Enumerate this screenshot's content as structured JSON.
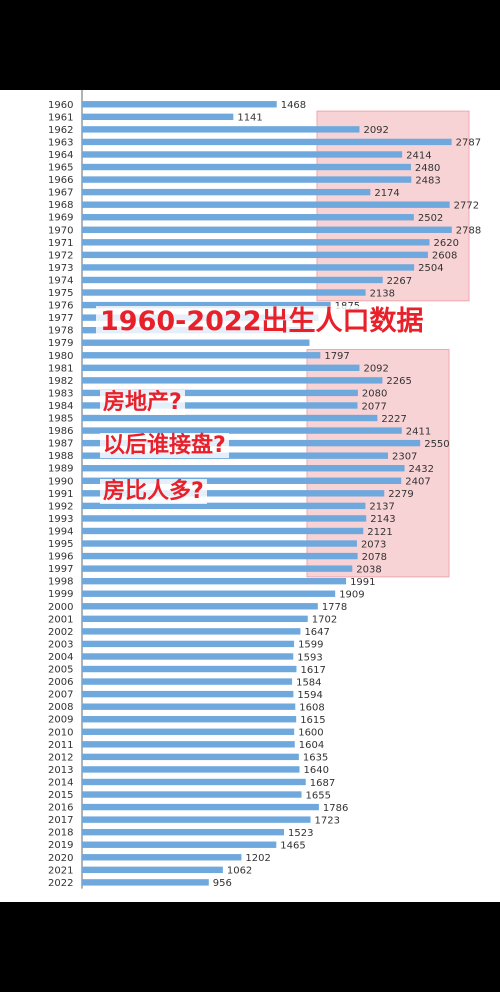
{
  "overlay": {
    "title": "1960-2022出生人口数据",
    "questions": [
      "房地产?",
      "以后谁接盘?",
      "房比人多?"
    ]
  },
  "colors": {
    "bar": "#6fa8dc",
    "highlight": "#f8d3d6",
    "highlight_border": "#f0a7ad",
    "overlay_text": "#e8202a"
  },
  "chart_data": {
    "type": "bar",
    "orientation": "horizontal",
    "categories": [
      "1960",
      "1961",
      "1962",
      "1963",
      "1964",
      "1965",
      "1966",
      "1967",
      "1968",
      "1969",
      "1970",
      "1971",
      "1972",
      "1973",
      "1974",
      "1975",
      "1976",
      "1977",
      "1978",
      "1979",
      "1980",
      "1981",
      "1982",
      "1983",
      "1984",
      "1985",
      "1986",
      "1987",
      "1988",
      "1989",
      "1990",
      "1991",
      "1992",
      "1993",
      "1994",
      "1995",
      "1996",
      "1997",
      "1998",
      "1999",
      "2000",
      "2001",
      "2002",
      "2003",
      "2004",
      "2005",
      "2006",
      "2007",
      "2008",
      "2009",
      "2010",
      "2011",
      "2012",
      "2013",
      "2014",
      "2015",
      "2016",
      "2017",
      "2018",
      "2019",
      "2020",
      "2021",
      "2022"
    ],
    "values": [
      1468,
      1141,
      2092,
      2787,
      2414,
      2480,
      2483,
      2174,
      2772,
      2502,
      2788,
      2620,
      2608,
      2504,
      2267,
      2138,
      1875,
      null,
      null,
      null,
      1797,
      2092,
      2265,
      2080,
      2077,
      2227,
      2411,
      2550,
      2307,
      2432,
      2407,
      2279,
      2137,
      2143,
      2121,
      2073,
      2078,
      2038,
      1991,
      1909,
      1778,
      1702,
      1647,
      1599,
      1593,
      1617,
      1584,
      1594,
      1608,
      1615,
      1600,
      1604,
      1635,
      1640,
      1687,
      1655,
      1786,
      1723,
      1523,
      1465,
      1202,
      1062,
      956
    ],
    "estimated_values": {
      "1977": 1783,
      "1978": 1733,
      "1979": 1715
    },
    "highlight_ranges": [
      [
        "1962",
        "1975"
      ],
      [
        "1981",
        "1997"
      ]
    ],
    "xlim": [
      0,
      2850
    ],
    "grid": false
  }
}
